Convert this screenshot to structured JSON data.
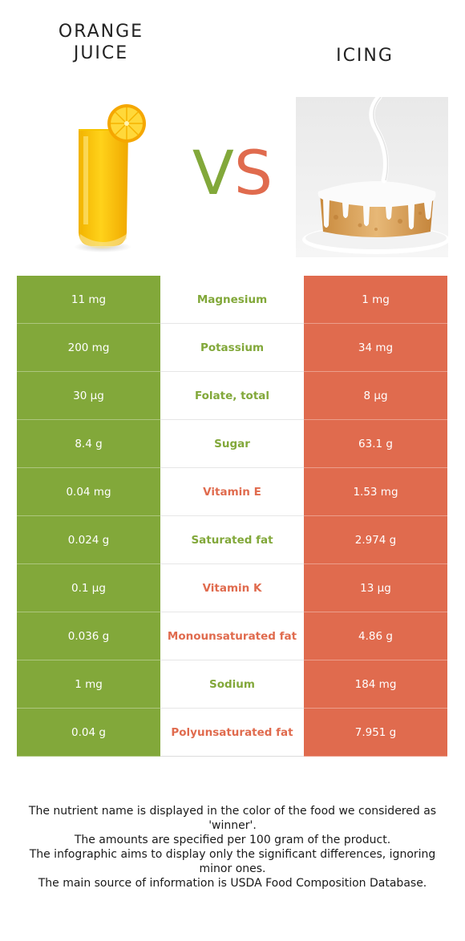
{
  "colors": {
    "green": "#82a83a",
    "red": "#e06b4e"
  },
  "left_food": {
    "title_line1": "ORANGE",
    "title_line2": "JUICE",
    "image_icon": "orange-juice-glass"
  },
  "right_food": {
    "title": "ICING",
    "image_icon": "iced-cake"
  },
  "vs": {
    "v": "V",
    "s": "S"
  },
  "rows": [
    {
      "left": "11 mg",
      "nutrient": "Magnesium",
      "right": "1 mg",
      "winner": "left"
    },
    {
      "left": "200 mg",
      "nutrient": "Potassium",
      "right": "34 mg",
      "winner": "left"
    },
    {
      "left": "30 µg",
      "nutrient": "Folate, total",
      "right": "8 µg",
      "winner": "left"
    },
    {
      "left": "8.4 g",
      "nutrient": "Sugar",
      "right": "63.1 g",
      "winner": "left"
    },
    {
      "left": "0.04 mg",
      "nutrient": "Vitamin E",
      "right": "1.53 mg",
      "winner": "right"
    },
    {
      "left": "0.024 g",
      "nutrient": "Saturated fat",
      "right": "2.974 g",
      "winner": "left"
    },
    {
      "left": "0.1 µg",
      "nutrient": "Vitamin K",
      "right": "13 µg",
      "winner": "right"
    },
    {
      "left": "0.036 g",
      "nutrient": "Monounsaturated fat",
      "right": "4.86 g",
      "winner": "right"
    },
    {
      "left": "1 mg",
      "nutrient": "Sodium",
      "right": "184 mg",
      "winner": "left"
    },
    {
      "left": "0.04 g",
      "nutrient": "Polyunsaturated fat",
      "right": "7.951 g",
      "winner": "right"
    }
  ],
  "footnote": {
    "line1": "The nutrient name is displayed in the color of the food we considered as 'winner'.",
    "line2": "The amounts are specified per 100 gram of the product.",
    "line3": "The infographic aims to display only the significant differences, ignoring minor ones.",
    "line4": "The main source of information is USDA Food Composition Database."
  }
}
